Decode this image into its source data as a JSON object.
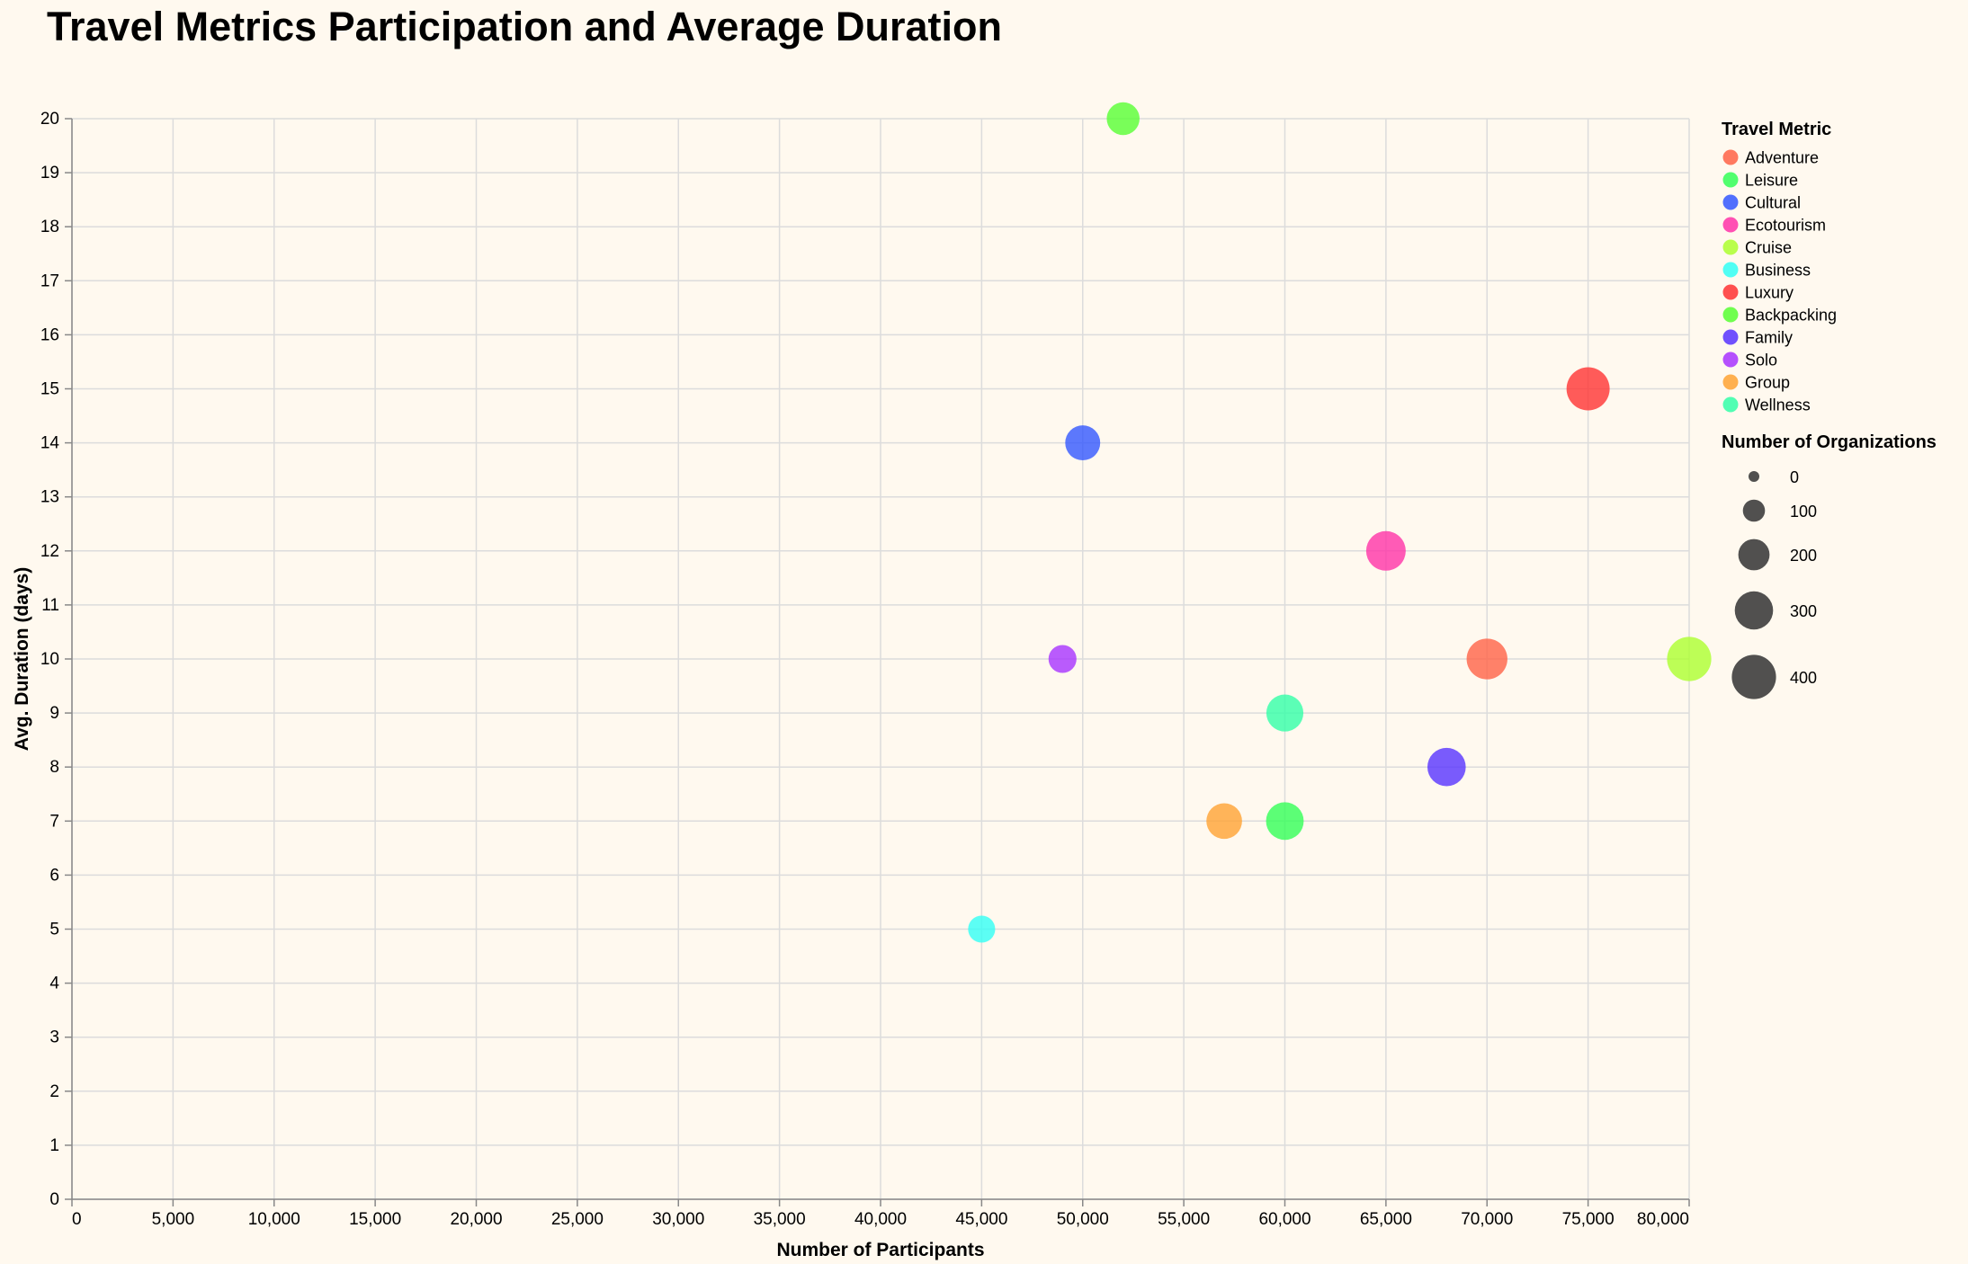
{
  "chart_data": {
    "type": "scatter",
    "title": "Travel Metrics Participation and Average Duration",
    "xlabel": "Number of Participants",
    "ylabel": "Avg. Duration (days)",
    "xlim": [
      0,
      80000
    ],
    "ylim": [
      0,
      20
    ],
    "x_ticks": [
      0,
      5000,
      10000,
      15000,
      20000,
      25000,
      30000,
      35000,
      40000,
      45000,
      50000,
      55000,
      60000,
      65000,
      70000,
      75000,
      80000
    ],
    "x_tick_labels": [
      "0",
      "5,000",
      "10,000",
      "15,000",
      "20,000",
      "25,000",
      "30,000",
      "35,000",
      "40,000",
      "45,000",
      "50,000",
      "55,000",
      "60,000",
      "65,000",
      "70,000",
      "75,000",
      "80,000"
    ],
    "y_ticks": [
      0,
      1,
      2,
      3,
      4,
      5,
      6,
      7,
      8,
      9,
      10,
      11,
      12,
      13,
      14,
      15,
      16,
      17,
      18,
      19,
      20
    ],
    "y_tick_labels": [
      "0",
      "1",
      "2",
      "3",
      "4",
      "5",
      "6",
      "7",
      "8",
      "9",
      "10",
      "11",
      "12",
      "13",
      "14",
      "15",
      "16",
      "17",
      "18",
      "19",
      "20"
    ],
    "grid": true,
    "legend_position": "right",
    "color_legend_title": "Travel Metric",
    "size_legend_title": "Number of Organizations",
    "size_legend_values": [
      0,
      100,
      200,
      300,
      400
    ],
    "size_legend_labels": [
      "0",
      "100",
      "200",
      "300",
      "400"
    ],
    "series": [
      {
        "name": "Adventure",
        "color": "#ff6347",
        "x": 70000,
        "y": 10,
        "size": 340
      },
      {
        "name": "Leisure",
        "color": "#33ff57",
        "x": 60000,
        "y": 7,
        "size": 290
      },
      {
        "name": "Cultural",
        "color": "#3357ff",
        "x": 50000,
        "y": 14,
        "size": 250
      },
      {
        "name": "Ecotourism",
        "color": "#ff33a8",
        "x": 65000,
        "y": 12,
        "size": 320
      },
      {
        "name": "Cruise",
        "color": "#adff2f",
        "x": 80000,
        "y": 10,
        "size": 400
      },
      {
        "name": "Business",
        "color": "#33fff5",
        "x": 45000,
        "y": 5,
        "size": 150
      },
      {
        "name": "Luxury",
        "color": "#ff3333",
        "x": 75000,
        "y": 15,
        "size": 380
      },
      {
        "name": "Backpacking",
        "color": "#57ff33",
        "x": 52000,
        "y": 20,
        "size": 220
      },
      {
        "name": "Family",
        "color": "#5733ff",
        "x": 68000,
        "y": 8,
        "size": 300
      },
      {
        "name": "Solo",
        "color": "#a833ff",
        "x": 49000,
        "y": 10,
        "size": 160
      },
      {
        "name": "Group",
        "color": "#ffa333",
        "x": 57000,
        "y": 7,
        "size": 260
      },
      {
        "name": "Wellness",
        "color": "#33ffa8",
        "x": 60000,
        "y": 9,
        "size": 280
      }
    ]
  }
}
